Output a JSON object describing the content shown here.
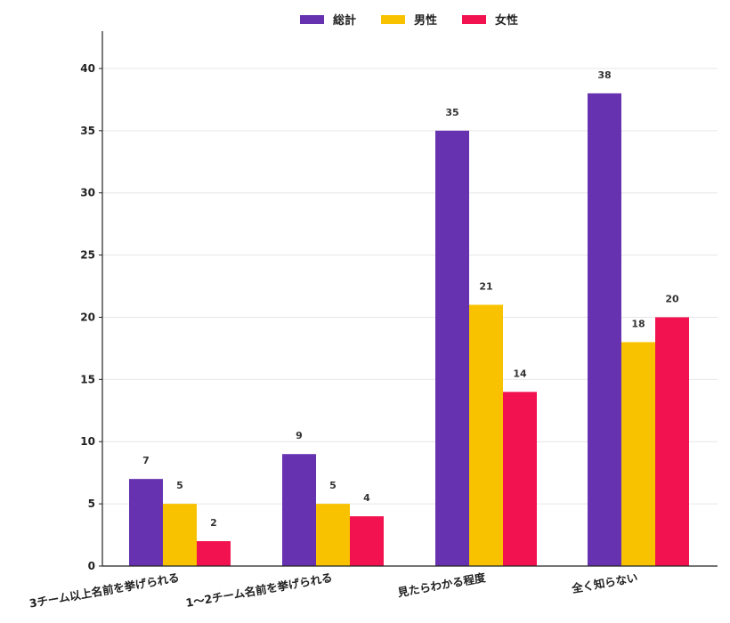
{
  "chart_data": {
    "type": "bar",
    "title": "",
    "xlabel": "",
    "ylabel": "",
    "ylim": [
      0,
      43
    ],
    "yticks": [
      0,
      5,
      10,
      15,
      20,
      25,
      30,
      35,
      40
    ],
    "grid": true,
    "legend_position": "top-center",
    "categories": [
      "3チーム以上名前を挙げられる",
      "1～2チーム名前を挙げられる",
      "見たらわかる程度",
      "全く知らない"
    ],
    "series": [
      {
        "name": "総計",
        "color": "#6632b0",
        "values": [
          7,
          9,
          35,
          38
        ]
      },
      {
        "name": "男性",
        "color": "#f9c200",
        "values": [
          5,
          5,
          21,
          18
        ]
      },
      {
        "name": "女性",
        "color": "#f1124f",
        "values": [
          2,
          4,
          14,
          20
        ]
      }
    ]
  }
}
